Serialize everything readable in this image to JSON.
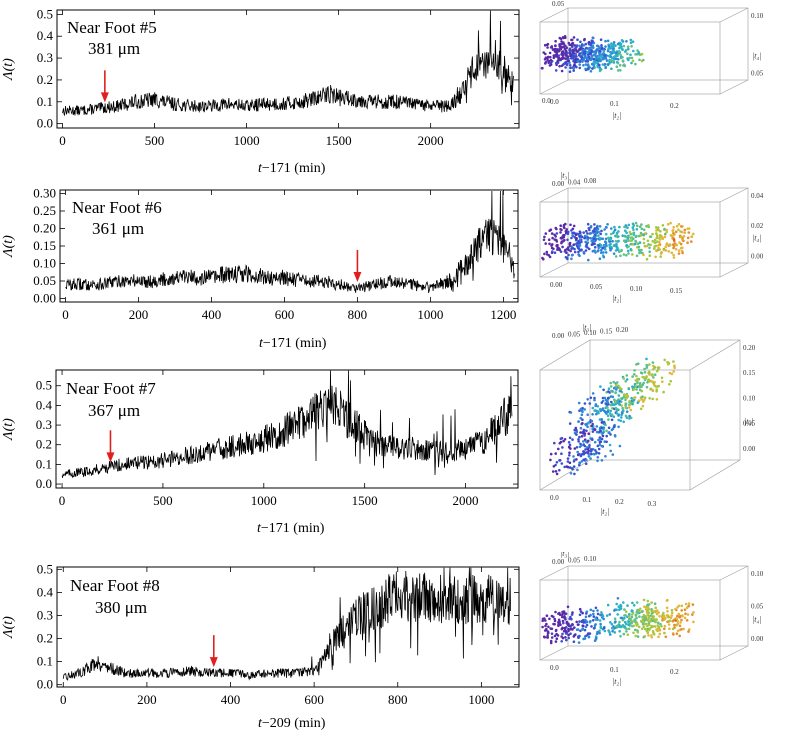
{
  "chart_data": [
    {
      "type": "line",
      "title": "Near Foot #5",
      "subtitle": "381 μm",
      "ylabel": "Λ(t)",
      "xlabel_t": "t",
      "xlabel_rest": "−171 (min)",
      "xlim": [
        -30,
        2480
      ],
      "ylim": [
        -0.02,
        0.52
      ],
      "xticks": [
        0,
        500,
        1000,
        1500,
        2000
      ],
      "yticks": [
        0.0,
        0.1,
        0.2,
        0.3,
        0.4,
        0.5
      ],
      "ytick_labels": [
        "0.0",
        "0.1",
        "0.2",
        "0.3",
        "0.4",
        "0.5"
      ],
      "arrow_x": 230,
      "arrow_y": 0.07,
      "series": [
        {
          "name": "Near Foot #5",
          "x": [
            0,
            100,
            200,
            300,
            400,
            500,
            600,
            700,
            800,
            900,
            1000,
            1100,
            1200,
            1300,
            1400,
            1450,
            1500,
            1600,
            1700,
            1800,
            1900,
            2000,
            2100,
            2150,
            2200,
            2250,
            2300,
            2350,
            2400,
            2450
          ],
          "y": [
            0.06,
            0.06,
            0.07,
            0.08,
            0.1,
            0.11,
            0.09,
            0.08,
            0.08,
            0.09,
            0.08,
            0.09,
            0.09,
            0.1,
            0.12,
            0.14,
            0.12,
            0.11,
            0.1,
            0.1,
            0.09,
            0.08,
            0.08,
            0.12,
            0.2,
            0.28,
            0.25,
            0.3,
            0.22,
            0.18
          ]
        }
      ]
    },
    {
      "type": "line",
      "title": "Near Foot #6",
      "subtitle": "361 μm",
      "ylabel": "Λ(t)",
      "xlabel_t": "t",
      "xlabel_rest": "−171 (min)",
      "xlim": [
        -15,
        1240
      ],
      "ylim": [
        -0.01,
        0.31
      ],
      "xticks": [
        0,
        200,
        400,
        600,
        800,
        1000,
        1200
      ],
      "yticks": [
        0.0,
        0.05,
        0.1,
        0.15,
        0.2,
        0.25,
        0.3
      ],
      "ytick_labels": [
        "0.00",
        "0.05",
        "0.10",
        "0.15",
        "0.20",
        "0.25",
        "0.30"
      ],
      "arrow_x": 800,
      "arrow_y": 0.03,
      "series": [
        {
          "name": "Near Foot #6",
          "x": [
            0,
            50,
            100,
            150,
            200,
            250,
            300,
            350,
            400,
            450,
            500,
            550,
            600,
            650,
            700,
            750,
            800,
            850,
            900,
            950,
            1000,
            1050,
            1100,
            1150,
            1200,
            1230
          ],
          "y": [
            0.04,
            0.04,
            0.04,
            0.05,
            0.05,
            0.05,
            0.06,
            0.06,
            0.06,
            0.07,
            0.07,
            0.06,
            0.06,
            0.05,
            0.05,
            0.04,
            0.03,
            0.04,
            0.05,
            0.04,
            0.03,
            0.05,
            0.1,
            0.18,
            0.17,
            0.08
          ]
        }
      ]
    },
    {
      "type": "line",
      "title": "Near Foot #7",
      "subtitle": "367 μm",
      "ylabel": "Λ(t)",
      "xlabel_t": "t",
      "xlabel_rest": "−171 (min)",
      "xlim": [
        -30,
        2260
      ],
      "ylim": [
        -0.02,
        0.58
      ],
      "xticks": [
        0,
        500,
        1000,
        1500,
        2000
      ],
      "yticks": [
        0.0,
        0.1,
        0.2,
        0.3,
        0.4,
        0.5
      ],
      "ytick_labels": [
        "0.0",
        "0.1",
        "0.2",
        "0.3",
        "0.4",
        "0.5"
      ],
      "arrow_x": 240,
      "arrow_y": 0.08,
      "series": [
        {
          "name": "Near Foot #7",
          "x": [
            0,
            100,
            200,
            300,
            400,
            500,
            600,
            700,
            800,
            900,
            1000,
            1100,
            1200,
            1300,
            1350,
            1400,
            1500,
            1600,
            1700,
            1800,
            1900,
            2000,
            2100,
            2200,
            2230
          ],
          "y": [
            0.05,
            0.06,
            0.08,
            0.1,
            0.11,
            0.12,
            0.14,
            0.16,
            0.18,
            0.2,
            0.23,
            0.27,
            0.33,
            0.38,
            0.4,
            0.35,
            0.25,
            0.2,
            0.18,
            0.17,
            0.17,
            0.18,
            0.22,
            0.35,
            0.45
          ]
        }
      ]
    },
    {
      "type": "line",
      "title": "Near Foot #8",
      "subtitle": "380 μm",
      "ylabel": "Λ(t)",
      "xlabel_t": "t",
      "xlabel_rest": "−209 (min)",
      "xlim": [
        -15,
        1090
      ],
      "ylim": [
        -0.01,
        0.51
      ],
      "xticks": [
        0,
        200,
        400,
        600,
        800,
        1000
      ],
      "yticks": [
        0.0,
        0.1,
        0.2,
        0.3,
        0.4,
        0.5
      ],
      "ytick_labels": [
        "0.0",
        "0.1",
        "0.2",
        "0.3",
        "0.4",
        "0.5"
      ],
      "arrow_x": 360,
      "arrow_y": 0.05,
      "series": [
        {
          "name": "Near Foot #8",
          "x": [
            0,
            50,
            80,
            100,
            150,
            200,
            250,
            300,
            350,
            400,
            450,
            500,
            550,
            600,
            620,
            650,
            700,
            750,
            800,
            850,
            900,
            950,
            1000,
            1050,
            1070
          ],
          "y": [
            0.03,
            0.06,
            0.1,
            0.08,
            0.05,
            0.05,
            0.05,
            0.06,
            0.05,
            0.05,
            0.04,
            0.05,
            0.05,
            0.06,
            0.1,
            0.2,
            0.3,
            0.33,
            0.4,
            0.38,
            0.37,
            0.36,
            0.38,
            0.37,
            0.36
          ]
        }
      ]
    },
    {
      "type": "scatter",
      "axis_labels": [
        "|t₃|",
        "|t₄|",
        "|t₂|"
      ],
      "top_ticks": [
        "0.05"
      ],
      "right_ticks": [
        "0.10",
        "0.05"
      ],
      "right_ticks_x": [
        "0.0"
      ],
      "bottom_ticks": [
        "0.0",
        "0.1",
        "0.2"
      ]
    },
    {
      "type": "scatter",
      "axis_labels": [
        "|t₃|",
        "|t₄|",
        "|t₂|"
      ],
      "top_ticks": [
        "0.00",
        "0.04",
        "0.08"
      ],
      "right_ticks": [
        "0.04",
        "0.02",
        "0.00"
      ],
      "bottom_ticks": [
        "0.00",
        "0.05",
        "0.10",
        "0.15"
      ]
    },
    {
      "type": "scatter",
      "axis_labels": [
        "|t₃|",
        "|t₄|",
        "|t₂|"
      ],
      "top_ticks": [
        "0.00",
        "0.05",
        "0.10",
        "0.15",
        "0.20"
      ],
      "right_ticks": [
        "0.20",
        "0.15",
        "0.10",
        "0.05",
        "0.00"
      ],
      "bottom_ticks": [
        "0.0",
        "0.1",
        "0.2",
        "0.3"
      ]
    },
    {
      "type": "scatter",
      "axis_labels": [
        "|t₃|",
        "|t₄|",
        "|t₂|"
      ],
      "top_ticks": [
        "0.00",
        "0.05",
        "0.10"
      ],
      "right_ticks": [
        "0.10",
        "0.05",
        "0.00"
      ],
      "bottom_ticks": [
        "0.0",
        "0.1",
        "0.2"
      ]
    }
  ]
}
